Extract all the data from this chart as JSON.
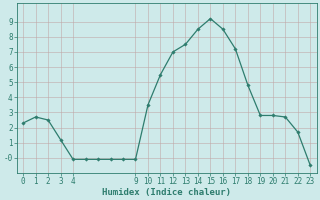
{
  "x": [
    0,
    1,
    2,
    3,
    4,
    5,
    6,
    7,
    8,
    9,
    10,
    11,
    12,
    13,
    14,
    15,
    16,
    17,
    18,
    19,
    20,
    21,
    22,
    23
  ],
  "y": [
    2.3,
    2.7,
    2.5,
    1.2,
    -0.1,
    -0.1,
    -0.1,
    -0.1,
    -0.1,
    -0.1,
    3.5,
    5.5,
    7.0,
    7.5,
    8.5,
    9.2,
    8.5,
    7.2,
    4.8,
    2.8,
    2.8,
    2.7,
    1.7,
    -0.5
  ],
  "line_color": "#2e7d6e",
  "marker": "D",
  "marker_size": 1.8,
  "bg_color": "#ceeaea",
  "grid_color": "#c0a8a8",
  "xlabel": "Humidex (Indice chaleur)",
  "xlabel_fontsize": 6.5,
  "ytick_vals": [
    0,
    1,
    2,
    3,
    4,
    5,
    6,
    7,
    8,
    9
  ],
  "ytick_labels": [
    "-0",
    "1",
    "2",
    "3",
    "4",
    "5",
    "6",
    "7",
    "8",
    "9"
  ],
  "xtick_positions": [
    0,
    1,
    2,
    3,
    4,
    9,
    10,
    11,
    12,
    13,
    14,
    15,
    16,
    17,
    18,
    19,
    20,
    21,
    22,
    23
  ],
  "xtick_labels": [
    "0",
    "1",
    "2",
    "3",
    "4",
    "9",
    "10",
    "11",
    "12",
    "13",
    "14",
    "15",
    "16",
    "17",
    "18",
    "19",
    "20",
    "21",
    "22",
    "23"
  ],
  "ylim": [
    -1.0,
    10.2
  ],
  "xlim": [
    -0.5,
    23.5
  ],
  "tick_fontsize": 5.5,
  "linewidth": 0.9
}
